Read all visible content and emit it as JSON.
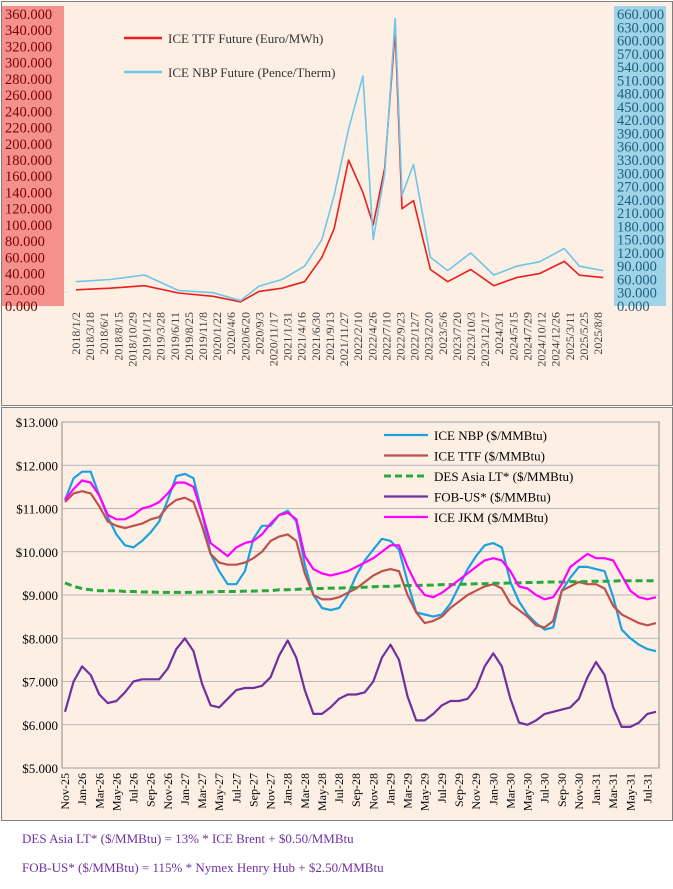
{
  "top_chart": {
    "chart_data": {
      "type": "line",
      "series": [
        {
          "name": "ICE TTF Future (Euro/MWh)",
          "color": "#e8201e",
          "axis": "left",
          "x": [
            "2018/1/2",
            "2018/7/1",
            "2019/1/1",
            "2019/7/1",
            "2020/1/1",
            "2020/5/25",
            "2020/9/1",
            "2021/1/1",
            "2021/5/1",
            "2021/8/1",
            "2021/10/5",
            "2021/12/21",
            "2022/3/7",
            "2022/5/1",
            "2022/7/1",
            "2022/8/26",
            "2022/10/1",
            "2022/12/1",
            "2023/3/1",
            "2023/6/1",
            "2023/10/1",
            "2024/2/1",
            "2024/6/1",
            "2024/10/1",
            "2025/2/10",
            "2025/5/1",
            "2025/9/5"
          ],
          "values": [
            20,
            22,
            25,
            16,
            12,
            5,
            18,
            22,
            30,
            60,
            95,
            180,
            140,
            100,
            170,
            340,
            120,
            130,
            45,
            30,
            45,
            25,
            35,
            40,
            55,
            38,
            35
          ]
        },
        {
          "name": "ICE NBP Future (Pence/Therm)",
          "color": "#6ec6e8",
          "axis": "right",
          "x": [
            "2018/1/2",
            "2018/7/1",
            "2019/1/1",
            "2019/7/1",
            "2020/1/1",
            "2020/5/25",
            "2020/9/1",
            "2021/1/1",
            "2021/5/1",
            "2021/8/1",
            "2021/10/5",
            "2021/12/21",
            "2022/3/7",
            "2022/5/1",
            "2022/7/1",
            "2022/8/26",
            "2022/10/1",
            "2022/12/1",
            "2023/3/1",
            "2023/6/1",
            "2023/10/1",
            "2024/2/1",
            "2024/6/1",
            "2024/10/1",
            "2025/2/10",
            "2025/5/1",
            "2025/9/5"
          ],
          "values": [
            55,
            60,
            70,
            35,
            30,
            12,
            45,
            60,
            90,
            150,
            250,
            400,
            520,
            150,
            300,
            650,
            250,
            320,
            110,
            80,
            120,
            70,
            90,
            100,
            130,
            90,
            80
          ]
        }
      ],
      "x_tick_labels": [
        "2018/1/2",
        "2018/3/18",
        "2018/6/1",
        "2018/8/15",
        "2018/10/29",
        "2019/1/12",
        "2019/3/28",
        "2019/6/11",
        "2019/8/25",
        "2019/11/8",
        "2020/1/22",
        "2020/4/6",
        "2020/6/20",
        "2020/9/3",
        "2020/11/17",
        "2021/1/31",
        "2021/4/16",
        "2021/6/30",
        "2021/9/13",
        "2021/11/27",
        "2022/2/10",
        "2022/4/26",
        "2022/7/10",
        "2022/9/23",
        "2022/12/7",
        "2023/2/20",
        "2023/5/6",
        "2023/7/20",
        "2023/10/3",
        "2023/12/17",
        "2024/3/1",
        "2024/5/15",
        "2024/7/29",
        "2024/10/12",
        "2024/12/26",
        "2025/3/11",
        "2025/5/25",
        "2025/8/8"
      ],
      "ylim_left": [
        0,
        360
      ],
      "ylim_right": [
        0,
        660
      ],
      "y_ticks_left": [
        "0.000",
        "20.000",
        "40.000",
        "60.000",
        "80.000",
        "100.000",
        "120.000",
        "140.000",
        "160.000",
        "180.000",
        "200.000",
        "220.000",
        "240.000",
        "260.000",
        "280.000",
        "300.000",
        "320.000",
        "340.000",
        "360.000"
      ],
      "y_ticks_right": [
        "0.000",
        "30.000",
        "60.000",
        "90.000",
        "120.000",
        "150.000",
        "180.000",
        "210.000",
        "240.000",
        "270.000",
        "300.000",
        "330.000",
        "360.000",
        "390.000",
        "420.000",
        "450.000",
        "480.000",
        "510.000",
        "540.000",
        "570.000",
        "600.000",
        "630.000",
        "660.000"
      ],
      "left_axis_bg": "#f4918d",
      "right_axis_bg": "#9ed3e8",
      "legend_placement": "top-left",
      "grid": false
    }
  },
  "bottom_chart": {
    "chart_data": {
      "type": "line",
      "categories": [
        "Nov-25",
        "Dec-25",
        "Jan-26",
        "Feb-26",
        "Mar-26",
        "Apr-26",
        "May-26",
        "Jun-26",
        "Jul-26",
        "Aug-26",
        "Sep-26",
        "Oct-26",
        "Nov-26",
        "Dec-26",
        "Jan-27",
        "Feb-27",
        "Mar-27",
        "Apr-27",
        "May-27",
        "Jun-27",
        "Jul-27",
        "Aug-27",
        "Sep-27",
        "Oct-27",
        "Nov-27",
        "Dec-27",
        "Jan-28",
        "Feb-28",
        "Mar-28",
        "Apr-28",
        "May-28",
        "Jun-28",
        "Jul-28",
        "Aug-28",
        "Sep-28",
        "Oct-28",
        "Nov-28",
        "Dec-28",
        "Jan-29",
        "Feb-29",
        "Mar-29",
        "Apr-29",
        "May-29",
        "Jun-29",
        "Jul-29",
        "Aug-29",
        "Sep-29",
        "Oct-29",
        "Nov-29",
        "Dec-29",
        "Jan-30",
        "Feb-30",
        "Mar-30",
        "Apr-30",
        "May-30",
        "Jun-30",
        "Jul-30",
        "Aug-30",
        "Sep-30",
        "Oct-30",
        "Nov-30",
        "Dec-30",
        "Jan-31",
        "Feb-31",
        "Mar-31",
        "Apr-31",
        "May-31",
        "Jun-31",
        "Jul-31",
        "Aug-31"
      ],
      "x_tick_labels": [
        "Nov-25",
        "Jan-26",
        "Mar-26",
        "May-26",
        "Jul-26",
        "Sep-26",
        "Nov-26",
        "Jan-27",
        "Mar-27",
        "May-27",
        "Jul-27",
        "Sep-27",
        "Nov-27",
        "Jan-28",
        "Mar-28",
        "May-28",
        "Jul-28",
        "Sep-28",
        "Nov-28",
        "Jan-29",
        "Mar-29",
        "May-29",
        "Jul-29",
        "Sep-29",
        "Nov-29",
        "Jan-30",
        "Mar-30",
        "May-30",
        "Jul-30",
        "Sep-30",
        "Nov-30",
        "Jan-31",
        "Mar-31",
        "May-31",
        "Jul-31"
      ],
      "series": [
        {
          "name": "ICE NBP ($/MMBtu)",
          "color": "#1ba1e2",
          "style": "solid",
          "values": [
            11.2,
            11.7,
            11.85,
            11.85,
            11.3,
            10.8,
            10.4,
            10.15,
            10.1,
            10.25,
            10.45,
            10.7,
            11.2,
            11.75,
            11.8,
            11.7,
            10.9,
            9.95,
            9.55,
            9.25,
            9.25,
            9.55,
            10.3,
            10.6,
            10.6,
            10.85,
            10.95,
            10.7,
            9.7,
            9.0,
            8.7,
            8.65,
            8.7,
            9.0,
            9.45,
            9.8,
            10.05,
            10.3,
            10.25,
            10.05,
            9.3,
            8.6,
            8.55,
            8.5,
            8.55,
            8.8,
            9.2,
            9.6,
            9.9,
            10.15,
            10.2,
            10.1,
            9.3,
            8.85,
            8.55,
            8.35,
            8.2,
            8.25,
            9.1,
            9.4,
            9.65,
            9.65,
            9.6,
            9.55,
            8.95,
            8.2,
            8.0,
            7.85,
            7.75,
            7.7
          ]
        },
        {
          "name": "ICE TTF ($/MMBtu)",
          "color": "#c0504d",
          "style": "solid",
          "values": [
            11.15,
            11.35,
            11.4,
            11.35,
            11.05,
            10.7,
            10.6,
            10.55,
            10.6,
            10.65,
            10.75,
            10.8,
            11.05,
            11.2,
            11.25,
            11.15,
            10.6,
            9.95,
            9.75,
            9.7,
            9.7,
            9.75,
            9.85,
            10.0,
            10.25,
            10.35,
            10.4,
            10.25,
            9.5,
            9.0,
            8.9,
            8.9,
            8.95,
            9.05,
            9.15,
            9.3,
            9.45,
            9.55,
            9.6,
            9.55,
            9.0,
            8.6,
            8.35,
            8.4,
            8.5,
            8.7,
            8.85,
            9.0,
            9.1,
            9.2,
            9.25,
            9.15,
            8.8,
            8.65,
            8.5,
            8.3,
            8.25,
            8.4,
            9.1,
            9.2,
            9.3,
            9.25,
            9.25,
            9.15,
            8.75,
            8.55,
            8.45,
            8.35,
            8.3,
            8.35
          ]
        },
        {
          "name": "DES Asia LT* ($/MMBtu)",
          "color": "#27a83a",
          "style": "dashed",
          "values": [
            9.28,
            9.2,
            9.15,
            9.12,
            9.1,
            9.1,
            9.1,
            9.08,
            9.08,
            9.07,
            9.07,
            9.06,
            9.06,
            9.06,
            9.06,
            9.06,
            9.07,
            9.07,
            9.08,
            9.08,
            9.08,
            9.09,
            9.09,
            9.1,
            9.1,
            9.12,
            9.12,
            9.13,
            9.14,
            9.15,
            9.15,
            9.16,
            9.16,
            9.17,
            9.17,
            9.18,
            9.19,
            9.2,
            9.2,
            9.21,
            9.22,
            9.22,
            9.23,
            9.23,
            9.24,
            9.24,
            9.25,
            9.25,
            9.26,
            9.26,
            9.27,
            9.27,
            9.28,
            9.28,
            9.29,
            9.29,
            9.3,
            9.3,
            9.3,
            9.31,
            9.31,
            9.31,
            9.32,
            9.32,
            9.32,
            9.33,
            9.33,
            9.33,
            9.33,
            9.33
          ]
        },
        {
          "name": "FOB-US* ($/MMBtu)",
          "color": "#7030a0",
          "style": "solid",
          "values": [
            6.3,
            7.0,
            7.35,
            7.15,
            6.7,
            6.5,
            6.55,
            6.75,
            7.0,
            7.05,
            7.05,
            7.05,
            7.3,
            7.75,
            8.0,
            7.7,
            6.95,
            6.45,
            6.4,
            6.6,
            6.8,
            6.85,
            6.85,
            6.9,
            7.1,
            7.6,
            7.95,
            7.55,
            6.8,
            6.25,
            6.25,
            6.4,
            6.6,
            6.7,
            6.7,
            6.75,
            7.0,
            7.55,
            7.85,
            7.5,
            6.65,
            6.1,
            6.1,
            6.25,
            6.45,
            6.55,
            6.55,
            6.6,
            6.85,
            7.35,
            7.65,
            7.35,
            6.6,
            6.05,
            6.0,
            6.1,
            6.25,
            6.3,
            6.35,
            6.4,
            6.6,
            7.1,
            7.45,
            7.15,
            6.4,
            5.95,
            5.95,
            6.05,
            6.25,
            6.3
          ]
        },
        {
          "name": "ICE JKM ($/MMBtu)",
          "color": "#ff00ff",
          "style": "solid",
          "values": [
            11.2,
            11.45,
            11.65,
            11.6,
            11.3,
            10.85,
            10.75,
            10.75,
            10.85,
            11.0,
            11.05,
            11.15,
            11.35,
            11.6,
            11.6,
            11.5,
            10.9,
            10.2,
            10.05,
            9.9,
            10.1,
            10.2,
            10.25,
            10.4,
            10.65,
            10.85,
            10.9,
            10.75,
            9.9,
            9.6,
            9.5,
            9.45,
            9.5,
            9.55,
            9.65,
            9.75,
            9.85,
            10.0,
            10.15,
            10.15,
            9.65,
            9.25,
            9.0,
            8.95,
            9.05,
            9.2,
            9.35,
            9.5,
            9.65,
            9.8,
            9.85,
            9.8,
            9.55,
            9.2,
            9.15,
            9.0,
            8.9,
            8.95,
            9.25,
            9.65,
            9.8,
            9.95,
            9.85,
            9.85,
            9.8,
            9.45,
            9.1,
            8.95,
            8.9,
            8.95
          ]
        }
      ],
      "ylim": [
        5,
        13
      ],
      "y_ticks": [
        "$5.000",
        "$6.000",
        "$7.000",
        "$8.000",
        "$9.000",
        "$10.000",
        "$11.000",
        "$12.000",
        "$13.000"
      ],
      "grid": true,
      "legend_placement": "top-right"
    }
  },
  "footnotes": {
    "des_asia": "DES Asia LT* ($/MMBtu) = 13% * ICE Brent + $0.50/MMBtu",
    "fob_us": "FOB-US* ($/MMBtu) = 115% * Nymex Henry Hub + $2.50/MMBtu"
  }
}
